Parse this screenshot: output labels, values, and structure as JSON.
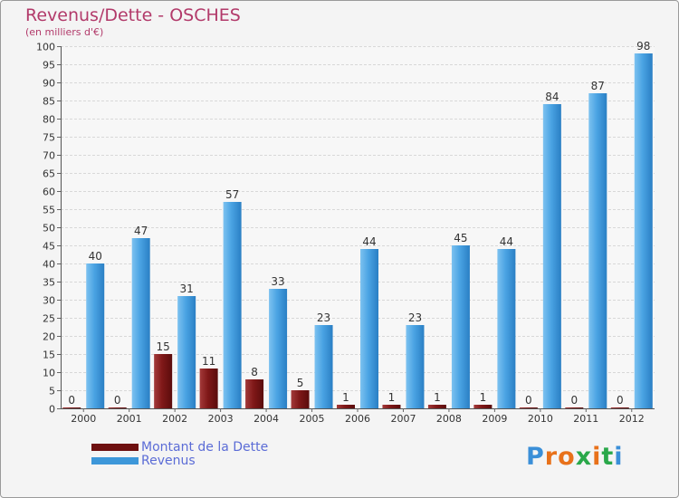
{
  "header": {
    "title": "Revenus/Dette - OSCHES",
    "subtitle": "(en milliers d'€)"
  },
  "chart_data": {
    "type": "bar",
    "title": "Revenus/Dette - OSCHES",
    "ylabel": "(en milliers d'€)",
    "xlabel": "",
    "ylim": [
      0,
      100
    ],
    "ytick_step": 5,
    "grid": true,
    "legend_position": "bottom-left",
    "categories": [
      "2000",
      "2001",
      "2002",
      "2003",
      "2004",
      "2005",
      "2006",
      "2007",
      "2008",
      "2009",
      "2010",
      "2011",
      "2012"
    ],
    "series": [
      {
        "name": "Montant de la Dette",
        "color": "#7a1414",
        "values": [
          0,
          0,
          15,
          11,
          8,
          5,
          1,
          1,
          1,
          1,
          0,
          0,
          0
        ]
      },
      {
        "name": "Revenus",
        "color": "#3d97d9",
        "values": [
          40,
          47,
          31,
          57,
          33,
          23,
          44,
          23,
          45,
          44,
          84,
          87,
          98
        ]
      }
    ]
  },
  "legend": {
    "items": [
      {
        "label": "Montant de la Dette",
        "color": "#7a1414"
      },
      {
        "label": "Revenus",
        "color": "#3d97d9"
      }
    ]
  },
  "logo": {
    "text": "Proxiti"
  }
}
